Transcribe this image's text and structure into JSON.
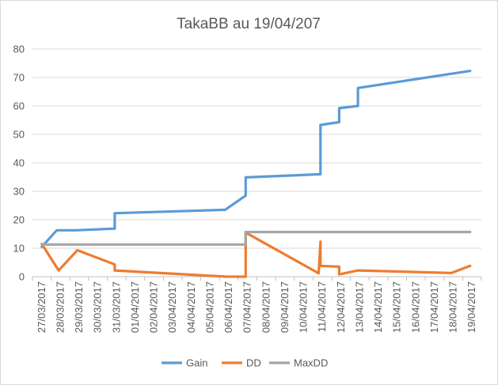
{
  "chart_data": {
    "type": "line",
    "title": "TakaBB au 19/04/207",
    "xlabel": "",
    "ylabel": "",
    "ylim": [
      0,
      80
    ],
    "yticks": [
      0,
      10,
      20,
      30,
      40,
      50,
      60,
      70,
      80
    ],
    "grid": true,
    "legend_position": "bottom",
    "categories": [
      "27/03/2017",
      "28/03/2017",
      "29/03/2017",
      "30/03/2017",
      "31/03/2017",
      "01/04/2017",
      "02/04/2017",
      "03/04/2017",
      "04/04/2017",
      "05/04/2017",
      "06/04/2017",
      "07/04/2017",
      "08/04/2017",
      "09/04/2017",
      "10/04/2017",
      "11/04/2017",
      "12/04/2017",
      "13/04/2017",
      "14/04/2017",
      "15/04/2017",
      "16/04/2017",
      "17/04/2017",
      "18/04/2017",
      "19/04/2017"
    ],
    "series": [
      {
        "name": "Gain",
        "color": "#5B9BD5",
        "points": [
          [
            0,
            10.5
          ],
          [
            0.8,
            16.3
          ],
          [
            1.8,
            16.3
          ],
          [
            3.9,
            16.9
          ],
          [
            3.9,
            22.3
          ],
          [
            9.8,
            23.5
          ],
          [
            10.9,
            28.5
          ],
          [
            10.9,
            34.9
          ],
          [
            14.9,
            36.0
          ],
          [
            14.9,
            53.3
          ],
          [
            15.9,
            54.3
          ],
          [
            15.9,
            59.2
          ],
          [
            16.9,
            60.0
          ],
          [
            16.9,
            66.3
          ],
          [
            22.9,
            72.3
          ]
        ]
      },
      {
        "name": "DD",
        "color": "#ED7D31",
        "points": [
          [
            0,
            11.5
          ],
          [
            0.9,
            2.2
          ],
          [
            1.9,
            9.3
          ],
          [
            3.9,
            4.3
          ],
          [
            3.9,
            2.2
          ],
          [
            9.9,
            0
          ],
          [
            10.9,
            0
          ],
          [
            10.9,
            15.5
          ],
          [
            14.8,
            1.2
          ],
          [
            14.9,
            12.3
          ],
          [
            14.9,
            3.8
          ],
          [
            15.9,
            3.5
          ],
          [
            15.9,
            0.8
          ],
          [
            16.9,
            2.2
          ],
          [
            21.9,
            1.3
          ],
          [
            22.9,
            3.8
          ]
        ]
      },
      {
        "name": "MaxDD",
        "color": "#A5A5A5",
        "points": [
          [
            0,
            11.3
          ],
          [
            10.9,
            11.3
          ],
          [
            10.9,
            15.7
          ],
          [
            22.9,
            15.7
          ]
        ]
      }
    ]
  }
}
